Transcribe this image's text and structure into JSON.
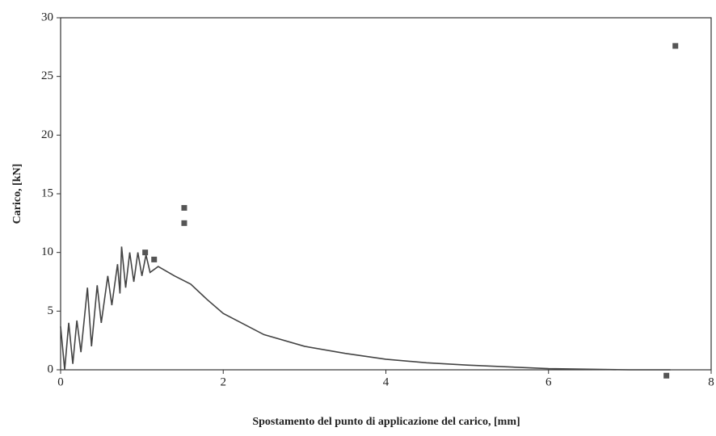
{
  "chart_data": {
    "type": "line",
    "xlabel": "Spostamento del punto di applicazione del carico, [mm]",
    "ylabel": "Carico, [kN]",
    "xlim": [
      0,
      8
    ],
    "xticks": [
      0,
      2,
      4,
      6,
      8
    ],
    "ylim": [
      0,
      30
    ],
    "yticks": [
      0,
      5,
      10,
      15,
      20,
      25,
      30
    ],
    "grid": false,
    "series": [
      {
        "type": "line",
        "color": "#444444",
        "x": [
          0,
          0.05,
          0.1,
          0.15,
          0.2,
          0.25,
          0.33,
          0.38,
          0.45,
          0.5,
          0.58,
          0.63,
          0.7,
          0.73,
          0.75,
          0.8,
          0.85,
          0.9,
          0.95,
          1.0,
          1.05,
          1.1,
          1.2,
          1.4,
          1.6,
          1.8,
          2.0,
          2.5,
          3.0,
          3.5,
          4.0,
          4.5,
          5.0,
          6.0,
          7.0,
          7.5
        ],
        "values": [
          3.7,
          0,
          4,
          0.5,
          4.2,
          1.5,
          7,
          2,
          7.2,
          4,
          8,
          5.5,
          9,
          6.5,
          10.5,
          7,
          10,
          7.5,
          10,
          8,
          9.8,
          8.3,
          8.8,
          8,
          7.3,
          6,
          4.8,
          3,
          2,
          1.4,
          0.9,
          0.6,
          0.4,
          0.1,
          0,
          0
        ]
      },
      {
        "type": "scatter",
        "color": "#555555",
        "x": [
          1.04,
          1.15,
          1.52,
          1.52,
          7.56,
          7.45
        ],
        "values": [
          10,
          9.4,
          13.8,
          12.5,
          27.6,
          -0.5
        ]
      }
    ]
  }
}
